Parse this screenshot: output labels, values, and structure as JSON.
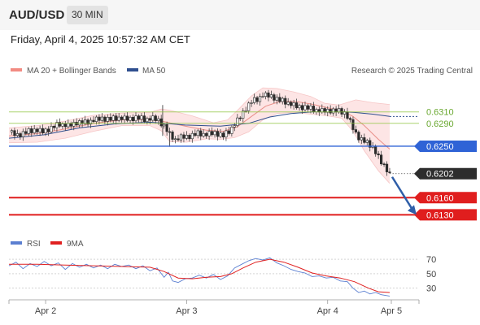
{
  "header": {
    "pair": "AUD/USD",
    "timeframe": "30 MIN"
  },
  "datetime": "Friday, April 4, 2025 10:57:32 AM CET",
  "legend": {
    "bollinger": {
      "label": "MA 20 + Bollinger Bands",
      "color": "#f28b82"
    },
    "ma50": {
      "label": "MA 50",
      "color": "#2f4f8f"
    },
    "credit": "Research © 2025 Trading Central"
  },
  "rsi_legend": {
    "rsi": {
      "label": "RSI",
      "color": "#5b7fd1"
    },
    "ma9": {
      "label": "9MA",
      "color": "#e02020"
    }
  },
  "chart_data": {
    "type": "line",
    "title": "AUD/USD 30 MIN",
    "price": {
      "ylim": [
        0.6105,
        0.6365
      ],
      "dates": [
        "Apr 2",
        "Apr 3",
        "Apr 4",
        "Apr 5"
      ],
      "close_path": [
        [
          0,
          0.6275
        ],
        [
          6,
          0.627
        ],
        [
          12,
          0.6274
        ],
        [
          18,
          0.6279
        ],
        [
          24,
          0.6276
        ],
        [
          30,
          0.6282
        ],
        [
          36,
          0.6289
        ],
        [
          42,
          0.6286
        ],
        [
          48,
          0.6292
        ],
        [
          54,
          0.6291
        ],
        [
          60,
          0.6296
        ],
        [
          66,
          0.6299
        ],
        [
          72,
          0.6297
        ],
        [
          78,
          0.63
        ],
        [
          84,
          0.6298
        ],
        [
          90,
          0.63
        ],
        [
          96,
          0.6297
        ],
        [
          102,
          0.6299
        ],
        [
          106,
          0.6296
        ],
        [
          110,
          0.6285
        ],
        [
          114,
          0.627
        ],
        [
          118,
          0.6262
        ],
        [
          122,
          0.6266
        ],
        [
          128,
          0.6268
        ],
        [
          134,
          0.6272
        ],
        [
          140,
          0.6271
        ],
        [
          146,
          0.6274
        ],
        [
          152,
          0.6268
        ],
        [
          156,
          0.6276
        ],
        [
          160,
          0.6289
        ],
        [
          164,
          0.6302
        ],
        [
          168,
          0.6317
        ],
        [
          172,
          0.6328
        ],
        [
          176,
          0.6332
        ],
        [
          180,
          0.634
        ],
        [
          186,
          0.6338
        ],
        [
          192,
          0.633
        ],
        [
          198,
          0.6326
        ],
        [
          204,
          0.632
        ],
        [
          210,
          0.6318
        ],
        [
          216,
          0.6314
        ],
        [
          222,
          0.6312
        ],
        [
          228,
          0.6313
        ],
        [
          234,
          0.6311
        ],
        [
          238,
          0.6309
        ],
        [
          241,
          0.6298
        ],
        [
          244,
          0.6282
        ],
        [
          247,
          0.6268
        ],
        [
          250,
          0.6262
        ],
        [
          254,
          0.6255
        ],
        [
          258,
          0.6249
        ],
        [
          261,
          0.6235
        ],
        [
          264,
          0.6222
        ],
        [
          267,
          0.6214
        ],
        [
          270,
          0.6202
        ]
      ],
      "ma20": [
        [
          0,
          0.6268
        ],
        [
          20,
          0.6272
        ],
        [
          40,
          0.628
        ],
        [
          60,
          0.629
        ],
        [
          80,
          0.6296
        ],
        [
          100,
          0.6297
        ],
        [
          110,
          0.6293
        ],
        [
          125,
          0.6285
        ],
        [
          140,
          0.6278
        ],
        [
          152,
          0.6276
        ],
        [
          162,
          0.6284
        ],
        [
          172,
          0.6302
        ],
        [
          182,
          0.632
        ],
        [
          192,
          0.6328
        ],
        [
          204,
          0.6328
        ],
        [
          216,
          0.6323
        ],
        [
          228,
          0.6316
        ],
        [
          236,
          0.6312
        ],
        [
          244,
          0.6302
        ],
        [
          252,
          0.6286
        ],
        [
          262,
          0.6262
        ],
        [
          270,
          0.6245
        ]
      ],
      "bollinger_upper": [
        [
          0,
          0.6282
        ],
        [
          20,
          0.6286
        ],
        [
          40,
          0.6294
        ],
        [
          60,
          0.6304
        ],
        [
          80,
          0.6308
        ],
        [
          100,
          0.6309
        ],
        [
          108,
          0.6315
        ],
        [
          114,
          0.6313
        ],
        [
          130,
          0.6303
        ],
        [
          145,
          0.6291
        ],
        [
          155,
          0.6296
        ],
        [
          163,
          0.6315
        ],
        [
          172,
          0.6338
        ],
        [
          180,
          0.6352
        ],
        [
          190,
          0.6351
        ],
        [
          202,
          0.6345
        ],
        [
          214,
          0.6337
        ],
        [
          224,
          0.6325
        ],
        [
          234,
          0.6322
        ],
        [
          246,
          0.6331
        ],
        [
          258,
          0.6326
        ],
        [
          270,
          0.6323
        ]
      ],
      "bollinger_lower": [
        [
          0,
          0.6256
        ],
        [
          20,
          0.6257
        ],
        [
          40,
          0.6264
        ],
        [
          60,
          0.6276
        ],
        [
          80,
          0.6286
        ],
        [
          100,
          0.6286
        ],
        [
          108,
          0.6277
        ],
        [
          114,
          0.6258
        ],
        [
          126,
          0.6257
        ],
        [
          140,
          0.6263
        ],
        [
          150,
          0.6262
        ],
        [
          160,
          0.6265
        ],
        [
          170,
          0.6275
        ],
        [
          180,
          0.6296
        ],
        [
          190,
          0.6307
        ],
        [
          202,
          0.6309
        ],
        [
          214,
          0.6306
        ],
        [
          226,
          0.6303
        ],
        [
          236,
          0.6299
        ],
        [
          244,
          0.6276
        ],
        [
          252,
          0.6242
        ],
        [
          262,
          0.6207
        ],
        [
          270,
          0.6185
        ]
      ],
      "ma50": [
        [
          0,
          0.6264
        ],
        [
          25,
          0.627
        ],
        [
          50,
          0.6282
        ],
        [
          75,
          0.6289
        ],
        [
          100,
          0.6292
        ],
        [
          125,
          0.6287
        ],
        [
          150,
          0.6285
        ],
        [
          170,
          0.629
        ],
        [
          185,
          0.6301
        ],
        [
          200,
          0.6307
        ],
        [
          215,
          0.631
        ],
        [
          230,
          0.6311
        ],
        [
          245,
          0.6309
        ],
        [
          258,
          0.6306
        ],
        [
          270,
          0.6302
        ]
      ],
      "events": [
        {
          "t": 109,
          "high": 0.6322,
          "low": 0.6268
        },
        {
          "t": 114,
          "high": 0.6276,
          "low": 0.6249
        }
      ],
      "current": {
        "value": 0.6202,
        "label": "0.6202"
      },
      "levels": [
        {
          "value": 0.631,
          "label": "0.6310",
          "kind": "resistance",
          "color": "#8dc63f"
        },
        {
          "value": 0.629,
          "label": "0.6290",
          "kind": "resistance",
          "color": "#8dc63f"
        },
        {
          "value": 0.625,
          "label": "0.6250",
          "kind": "pivot",
          "color": "#2f63d6"
        },
        {
          "value": 0.616,
          "label": "0.6160",
          "kind": "support",
          "color": "#e01e1e"
        },
        {
          "value": 0.613,
          "label": "0.6130",
          "kind": "support",
          "color": "#e01e1e"
        }
      ],
      "arrow": {
        "from": 0.6202,
        "to": 0.613,
        "color": "#2f5ea8"
      }
    },
    "rsi": {
      "ylim": [
        15,
        78
      ],
      "ticks": [
        30,
        50,
        70
      ],
      "rsi": [
        [
          0,
          61
        ],
        [
          5,
          66
        ],
        [
          10,
          57
        ],
        [
          15,
          64
        ],
        [
          20,
          60
        ],
        [
          25,
          67
        ],
        [
          30,
          61
        ],
        [
          35,
          65
        ],
        [
          40,
          56
        ],
        [
          45,
          64
        ],
        [
          50,
          59
        ],
        [
          55,
          63
        ],
        [
          60,
          58
        ],
        [
          65,
          62
        ],
        [
          70,
          57
        ],
        [
          75,
          63
        ],
        [
          80,
          60
        ],
        [
          85,
          62
        ],
        [
          90,
          57
        ],
        [
          95,
          61
        ],
        [
          100,
          54
        ],
        [
          105,
          58
        ],
        [
          110,
          45
        ],
        [
          113,
          52
        ],
        [
          116,
          40
        ],
        [
          120,
          38
        ],
        [
          125,
          43
        ],
        [
          130,
          44
        ],
        [
          135,
          48
        ],
        [
          140,
          44
        ],
        [
          145,
          49
        ],
        [
          150,
          42
        ],
        [
          155,
          47
        ],
        [
          160,
          58
        ],
        [
          165,
          63
        ],
        [
          170,
          68
        ],
        [
          175,
          71
        ],
        [
          180,
          69
        ],
        [
          185,
          72
        ],
        [
          190,
          65
        ],
        [
          195,
          61
        ],
        [
          200,
          56
        ],
        [
          205,
          53
        ],
        [
          210,
          51
        ],
        [
          215,
          46
        ],
        [
          220,
          47
        ],
        [
          225,
          44
        ],
        [
          230,
          45
        ],
        [
          235,
          40
        ],
        [
          240,
          39
        ],
        [
          244,
          30
        ],
        [
          248,
          24
        ],
        [
          252,
          26
        ],
        [
          256,
          22
        ],
        [
          260,
          24
        ],
        [
          264,
          21
        ],
        [
          270,
          19
        ]
      ],
      "ma9": [
        [
          0,
          63
        ],
        [
          20,
          63
        ],
        [
          40,
          62
        ],
        [
          60,
          61
        ],
        [
          80,
          60
        ],
        [
          100,
          59
        ],
        [
          110,
          53
        ],
        [
          120,
          44
        ],
        [
          130,
          43
        ],
        [
          140,
          45
        ],
        [
          150,
          46
        ],
        [
          158,
          50
        ],
        [
          166,
          58
        ],
        [
          175,
          66
        ],
        [
          185,
          70
        ],
        [
          195,
          66
        ],
        [
          205,
          59
        ],
        [
          215,
          51
        ],
        [
          225,
          47
        ],
        [
          235,
          44
        ],
        [
          245,
          39
        ],
        [
          255,
          30
        ],
        [
          262,
          25
        ],
        [
          270,
          24
        ]
      ]
    }
  }
}
